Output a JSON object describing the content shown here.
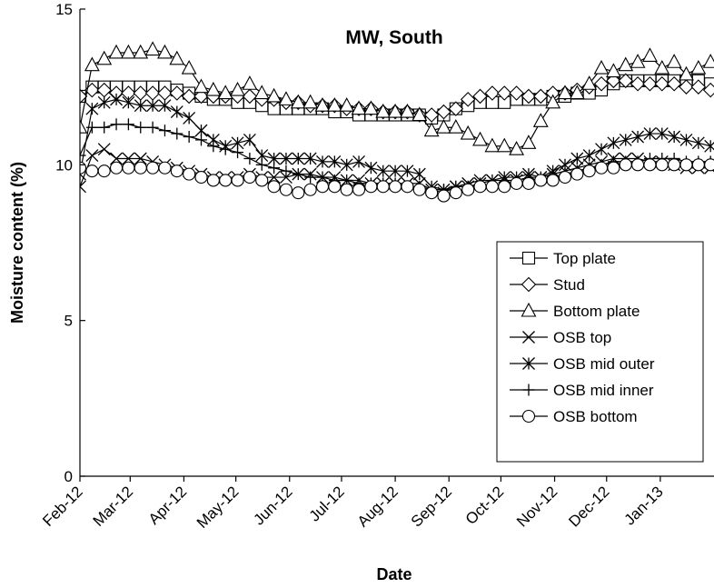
{
  "chart_data": {
    "type": "line",
    "title": "MW, South",
    "xlabel": "Date",
    "ylabel": "Moisture content (%)",
    "ylim": [
      0,
      15
    ],
    "yticks": [
      "0",
      "5",
      "10",
      "15"
    ],
    "xlim": [
      "2012-02-01",
      "2013-02-01"
    ],
    "xticks": [
      "Feb-12",
      "Mar-12",
      "Apr-12",
      "May-12",
      "Jun-12",
      "Jul-12",
      "Aug-12",
      "Sep-12",
      "Oct-12",
      "Nov-12",
      "Dec-12",
      "Jan-13"
    ],
    "grid": false,
    "legend_position": "bottom-right",
    "x": [
      "2012-02-01",
      "2012-02-08",
      "2012-02-15",
      "2012-02-22",
      "2012-02-29",
      "2012-03-07",
      "2012-03-14",
      "2012-03-21",
      "2012-03-28",
      "2012-04-04",
      "2012-04-11",
      "2012-04-18",
      "2012-04-25",
      "2012-05-02",
      "2012-05-09",
      "2012-05-16",
      "2012-05-23",
      "2012-05-30",
      "2012-06-06",
      "2012-06-13",
      "2012-06-20",
      "2012-06-27",
      "2012-07-04",
      "2012-07-11",
      "2012-07-18",
      "2012-07-25",
      "2012-08-01",
      "2012-08-08",
      "2012-08-15",
      "2012-08-22",
      "2012-08-29",
      "2012-09-05",
      "2012-09-12",
      "2012-09-19",
      "2012-09-26",
      "2012-10-03",
      "2012-10-10",
      "2012-10-17",
      "2012-10-24",
      "2012-10-31",
      "2012-11-07",
      "2012-11-14",
      "2012-11-21",
      "2012-11-28",
      "2012-12-05",
      "2012-12-12",
      "2012-12-19",
      "2012-12-26",
      "2013-01-02",
      "2013-01-09",
      "2013-01-16",
      "2013-01-23",
      "2013-01-30"
    ],
    "series": [
      {
        "name": "Top plate",
        "marker": "square",
        "values": [
          12.2,
          12.5,
          12.5,
          12.5,
          12.5,
          12.5,
          12.5,
          12.5,
          12.4,
          12.3,
          12.2,
          12.1,
          12.1,
          12.0,
          12.0,
          11.9,
          11.8,
          11.8,
          11.8,
          11.8,
          11.8,
          11.7,
          11.7,
          11.6,
          11.6,
          11.6,
          11.6,
          11.6,
          11.6,
          11.5,
          11.6,
          11.8,
          11.9,
          12.0,
          12.0,
          12.0,
          12.1,
          12.1,
          12.1,
          12.2,
          12.2,
          12.3,
          12.3,
          12.4,
          12.6,
          12.7,
          12.7,
          12.7,
          12.7,
          12.7,
          12.7,
          12.7,
          12.6
        ]
      },
      {
        "name": "Stud",
        "marker": "diamond",
        "values": [
          12.2,
          12.4,
          12.4,
          12.3,
          12.3,
          12.3,
          12.3,
          12.3,
          12.3,
          12.2,
          12.2,
          12.2,
          12.2,
          12.2,
          12.2,
          12.1,
          12.1,
          12.0,
          12.0,
          11.9,
          11.9,
          11.9,
          11.8,
          11.8,
          11.8,
          11.7,
          11.7,
          11.7,
          11.6,
          11.6,
          11.7,
          11.8,
          12.1,
          12.2,
          12.3,
          12.3,
          12.3,
          12.2,
          12.2,
          12.3,
          12.3,
          12.4,
          12.5,
          12.6,
          12.7,
          12.7,
          12.6,
          12.6,
          12.6,
          12.6,
          12.5,
          12.5,
          12.4
        ]
      },
      {
        "name": "Bottom plate",
        "marker": "triangle",
        "values": [
          11.2,
          13.2,
          13.4,
          13.6,
          13.6,
          13.6,
          13.7,
          13.6,
          13.4,
          13.1,
          12.5,
          12.4,
          12.3,
          12.4,
          12.6,
          12.3,
          12.2,
          12.1,
          12.0,
          12.0,
          11.9,
          11.9,
          11.9,
          11.8,
          11.8,
          11.7,
          11.7,
          11.7,
          11.6,
          11.1,
          11.2,
          11.2,
          11.0,
          10.8,
          10.6,
          10.6,
          10.5,
          10.7,
          11.4,
          12.0,
          12.3,
          12.3,
          12.6,
          13.1,
          13.0,
          13.2,
          13.3,
          13.5,
          13.1,
          13.3,
          12.9,
          13.1,
          13.3
        ]
      },
      {
        "name": "OSB top",
        "marker": "x",
        "values": [
          9.3,
          10.3,
          10.5,
          10.2,
          10.2,
          10.2,
          10.1,
          10.0,
          9.9,
          9.8,
          9.7,
          9.6,
          9.6,
          9.6,
          9.7,
          9.6,
          9.6,
          9.6,
          9.7,
          9.7,
          9.6,
          9.6,
          9.5,
          9.5,
          9.4,
          9.4,
          9.4,
          9.4,
          9.4,
          9.2,
          9.1,
          9.3,
          9.4,
          9.5,
          9.5,
          9.5,
          9.5,
          9.6,
          9.6,
          9.7,
          9.8,
          9.9,
          10.0,
          10.1,
          10.2,
          10.2,
          10.2,
          10.1,
          10.1,
          10.0,
          9.9,
          9.9,
          9.9
        ]
      },
      {
        "name": "OSB mid outer",
        "marker": "asterisk",
        "values": [
          9.7,
          11.8,
          12.0,
          12.1,
          12.0,
          11.9,
          11.9,
          11.9,
          11.7,
          11.5,
          11.1,
          10.8,
          10.6,
          10.7,
          10.8,
          10.3,
          10.2,
          10.2,
          10.2,
          10.2,
          10.1,
          10.1,
          10.0,
          10.1,
          9.9,
          9.8,
          9.8,
          9.8,
          9.7,
          9.3,
          9.2,
          9.3,
          9.3,
          9.4,
          9.5,
          9.6,
          9.6,
          9.7,
          9.6,
          9.8,
          10.0,
          10.2,
          10.3,
          10.5,
          10.7,
          10.8,
          10.9,
          11.0,
          11.0,
          10.9,
          10.8,
          10.7,
          10.6
        ]
      },
      {
        "name": "OSB mid inner",
        "marker": "plus",
        "values": [
          10.3,
          11.2,
          11.2,
          11.3,
          11.3,
          11.2,
          11.2,
          11.1,
          11.0,
          10.9,
          10.8,
          10.6,
          10.5,
          10.4,
          10.2,
          10.0,
          9.9,
          9.8,
          9.7,
          9.6,
          9.6,
          9.5,
          9.5,
          9.4,
          9.4,
          9.4,
          9.4,
          9.3,
          9.3,
          9.2,
          9.2,
          9.3,
          9.3,
          9.3,
          9.3,
          9.3,
          9.4,
          9.4,
          9.5,
          9.6,
          9.7,
          9.8,
          9.9,
          10.0,
          10.1,
          10.1,
          10.1,
          10.2,
          10.2,
          10.2,
          10.1,
          10.1,
          10.1
        ]
      },
      {
        "name": "OSB bottom",
        "marker": "circle",
        "values": [
          9.9,
          9.8,
          9.8,
          9.9,
          9.9,
          9.9,
          9.9,
          9.9,
          9.8,
          9.7,
          9.6,
          9.5,
          9.5,
          9.5,
          9.6,
          9.5,
          9.3,
          9.2,
          9.1,
          9.2,
          9.3,
          9.3,
          9.2,
          9.2,
          9.3,
          9.3,
          9.3,
          9.3,
          9.2,
          9.1,
          9.0,
          9.1,
          9.2,
          9.3,
          9.3,
          9.3,
          9.4,
          9.4,
          9.5,
          9.5,
          9.6,
          9.7,
          9.8,
          9.9,
          9.9,
          10.0,
          10.0,
          10.0,
          10.0,
          10.0,
          10.0,
          10.0,
          10.0
        ]
      }
    ]
  }
}
